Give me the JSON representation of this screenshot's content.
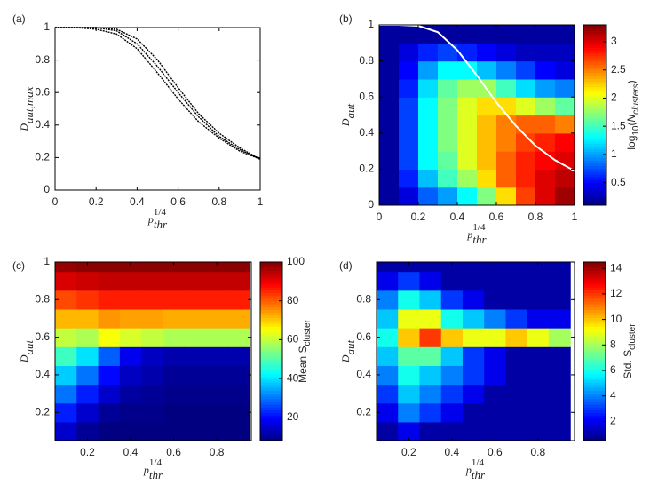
{
  "chart_data": [
    {
      "type": "line",
      "label": "(a)",
      "xlabel": {
        "base": "p",
        "sub": "thr",
        "sup": "1/4"
      },
      "ylabel": {
        "base": "D",
        "sub": "aut,max"
      },
      "x": [
        0,
        0.1,
        0.2,
        0.3,
        0.4,
        0.5,
        0.6,
        0.7,
        0.8,
        0.9,
        1
      ],
      "series": [
        {
          "color": "#000000",
          "values": [
            1,
            1,
            0.99,
            0.96,
            0.87,
            0.72,
            0.56,
            0.42,
            0.32,
            0.24,
            0.19
          ]
        },
        {
          "color": "#000000",
          "values": [
            1,
            1,
            1,
            0.98,
            0.9,
            0.76,
            0.6,
            0.45,
            0.33,
            0.25,
            0.19
          ]
        },
        {
          "color": "#000000",
          "values": [
            1,
            1,
            1,
            0.99,
            0.93,
            0.8,
            0.63,
            0.47,
            0.35,
            0.26,
            0.19
          ]
        }
      ],
      "xlim": [
        0,
        1
      ],
      "ylim": [
        0,
        1
      ],
      "xticks": [
        0,
        0.2,
        0.4,
        0.6,
        0.8,
        1
      ],
      "yticks": [
        0,
        0.2,
        0.4,
        0.6,
        0.8,
        1
      ]
    },
    {
      "type": "heatmap",
      "label": "(b)",
      "xlabel": {
        "base": "p",
        "sub": "thr",
        "sup": "1/4"
      },
      "ylabel": {
        "base": "D",
        "sub": "aut"
      },
      "colorbar_label": [
        {
          "text": "log"
        },
        {
          "text": "10",
          "script": "sub"
        },
        {
          "text": "("
        },
        {
          "text": "N",
          "style": "italic"
        },
        {
          "text": "clusters",
          "script": "sub",
          "style": "italic"
        },
        {
          "text": ")"
        }
      ],
      "colormap": "jet",
      "clim": [
        0.1,
        3.3
      ],
      "cticks": [
        0.5,
        1,
        1.5,
        2,
        2.5,
        3
      ],
      "x": [
        0.05,
        0.15,
        0.25,
        0.35,
        0.45,
        0.55,
        0.65,
        0.75,
        0.85,
        0.95
      ],
      "y": [
        0.05,
        0.15,
        0.25,
        0.35,
        0.45,
        0.55,
        0.65,
        0.75,
        0.85,
        0.95
      ],
      "z": [
        [
          0.2,
          0.2,
          0.2,
          0.2,
          0.2,
          0.2,
          0.2,
          0.2,
          0.2,
          0.2
        ],
        [
          0.4,
          0.6,
          0.7,
          0.7,
          0.7,
          0.7,
          0.6,
          0.5,
          0.4,
          0.2
        ],
        [
          0.8,
          1.1,
          1.3,
          1.3,
          1.3,
          1.3,
          1.2,
          1.0,
          0.6,
          0.2
        ],
        [
          1.0,
          1.5,
          1.6,
          1.7,
          1.7,
          1.7,
          1.6,
          1.3,
          0.7,
          0.2
        ],
        [
          1.3,
          1.8,
          2.0,
          2.0,
          2.0,
          2.0,
          1.8,
          1.3,
          0.6,
          0.2
        ],
        [
          1.7,
          2.2,
          2.3,
          2.3,
          2.3,
          2.2,
          1.8,
          1.1,
          0.5,
          0.2
        ],
        [
          2.2,
          2.6,
          2.6,
          2.5,
          2.5,
          2.2,
          1.5,
          0.9,
          0.4,
          0.2
        ],
        [
          2.7,
          2.8,
          2.8,
          2.7,
          2.6,
          2.0,
          1.2,
          0.7,
          0.3,
          0.2
        ],
        [
          3.0,
          3.0,
          2.9,
          2.8,
          2.6,
          1.8,
          1.0,
          0.5,
          0.3,
          0.2
        ],
        [
          3.2,
          3.1,
          3.0,
          2.9,
          2.5,
          1.6,
          0.9,
          0.4,
          0.3,
          0.2
        ]
      ],
      "overlay": {
        "color": "#ffffff",
        "x": [
          0,
          0.1,
          0.2,
          0.3,
          0.4,
          0.5,
          0.6,
          0.7,
          0.8,
          0.9,
          1
        ],
        "values": [
          1,
          1,
          0.995,
          0.96,
          0.86,
          0.72,
          0.57,
          0.44,
          0.33,
          0.25,
          0.19
        ]
      },
      "xlim": [
        0,
        1
      ],
      "ylim": [
        0,
        1
      ],
      "xticks": [
        0,
        0.2,
        0.4,
        0.6,
        0.8,
        1
      ],
      "yticks": [
        0,
        0.2,
        0.4,
        0.6,
        0.8,
        1
      ]
    },
    {
      "type": "heatmap",
      "label": "(c)",
      "xlabel": {
        "base": "p",
        "sub": "thr",
        "sup": "1/4"
      },
      "ylabel": {
        "base": "D",
        "sub": "aut"
      },
      "colorbar_label": [
        {
          "text": "Mean S"
        },
        {
          "text": "cluster",
          "script": "sub"
        }
      ],
      "colormap": "jet",
      "clim": [
        8,
        100
      ],
      "cticks": [
        20,
        40,
        60,
        80,
        100
      ],
      "x": [
        0.1,
        0.2,
        0.3,
        0.4,
        0.5,
        0.6,
        0.7,
        0.8,
        0.9
      ],
      "y": [
        0.1,
        0.2,
        0.3,
        0.4,
        0.5,
        0.6,
        0.7,
        0.8,
        0.9,
        1.0
      ],
      "z": [
        [
          15,
          22,
          30,
          38,
          48,
          60,
          72,
          82,
          92,
          98
        ],
        [
          10,
          15,
          22,
          30,
          40,
          58,
          72,
          84,
          93,
          99
        ],
        [
          8,
          10,
          15,
          20,
          28,
          65,
          75,
          86,
          94,
          99
        ],
        [
          8,
          9,
          11,
          14,
          18,
          62,
          74,
          86,
          94,
          99
        ],
        [
          8,
          9,
          10,
          12,
          14,
          60,
          74,
          86,
          94,
          99
        ],
        [
          8,
          8,
          9,
          10,
          12,
          58,
          73,
          86,
          94,
          99
        ],
        [
          8,
          8,
          9,
          10,
          12,
          58,
          73,
          86,
          94,
          99
        ],
        [
          8,
          8,
          9,
          10,
          12,
          58,
          73,
          86,
          94,
          99
        ],
        [
          8,
          8,
          9,
          10,
          12,
          58,
          73,
          86,
          94,
          99
        ]
      ],
      "xlim": [
        0.05,
        0.96
      ],
      "ylim": [
        0.05,
        1
      ],
      "xticks": [
        0.2,
        0.4,
        0.6,
        0.8
      ],
      "yticks": [
        0.2,
        0.4,
        0.6,
        0.8,
        1
      ]
    },
    {
      "type": "heatmap",
      "label": "(d)",
      "xlabel": {
        "base": "p",
        "sub": "thr",
        "sup": "1/4"
      },
      "ylabel": {
        "base": "D",
        "sub": "aut"
      },
      "colorbar_label": [
        {
          "text": "Std. S"
        },
        {
          "text": "cluster",
          "script": "sub"
        }
      ],
      "colormap": "jet",
      "clim": [
        0.5,
        14.5
      ],
      "cticks": [
        2,
        4,
        6,
        8,
        10,
        12,
        14
      ],
      "x": [
        0.1,
        0.2,
        0.3,
        0.4,
        0.5,
        0.6,
        0.7,
        0.8,
        0.9
      ],
      "y": [
        0.1,
        0.2,
        0.3,
        0.4,
        0.5,
        0.6,
        0.7,
        0.8,
        0.9,
        1.0
      ],
      "z": [
        [
          1,
          2,
          3,
          4,
          5,
          6,
          5,
          4,
          2,
          1
        ],
        [
          2,
          4,
          5,
          6,
          7,
          10,
          9,
          6,
          3,
          1
        ],
        [
          1,
          3,
          4,
          5,
          7,
          12,
          9,
          5,
          2,
          1
        ],
        [
          1,
          2,
          3,
          4,
          5,
          10,
          6,
          3,
          1,
          1
        ],
        [
          1,
          1,
          2,
          3,
          3,
          9,
          5,
          2,
          1,
          1
        ],
        [
          1,
          1,
          1,
          2,
          2,
          9,
          4,
          1,
          1,
          1
        ],
        [
          1,
          1,
          1,
          1,
          1,
          10,
          3,
          1,
          1,
          1
        ],
        [
          1,
          1,
          1,
          1,
          1,
          9,
          2,
          1,
          1,
          1
        ],
        [
          1,
          1,
          1,
          1,
          1,
          8,
          2,
          1,
          1,
          1
        ]
      ],
      "xlim": [
        0.05,
        0.97
      ],
      "ylim": [
        0.05,
        1
      ],
      "xticks": [
        0.2,
        0.4,
        0.6,
        0.8
      ],
      "yticks": [
        0.2,
        0.4,
        0.6,
        0.8
      ]
    }
  ]
}
